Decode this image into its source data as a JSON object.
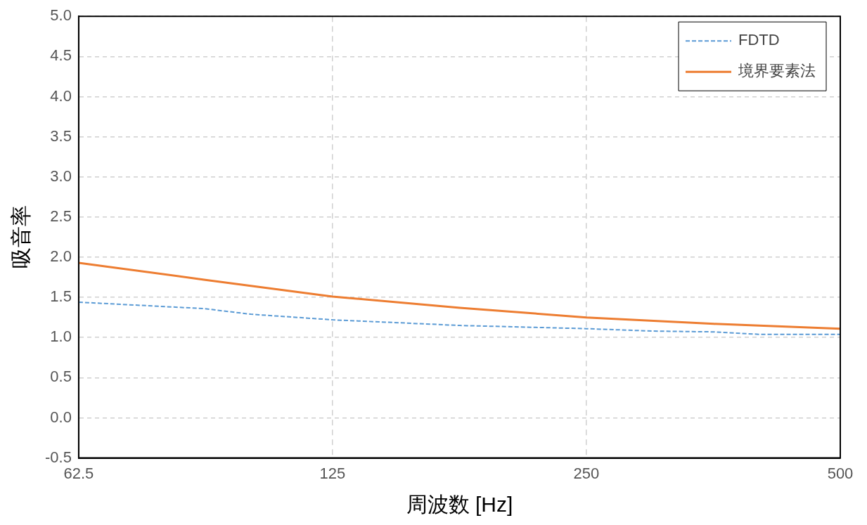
{
  "chart_data": {
    "type": "line",
    "xlabel": "周波数 [Hz]",
    "ylabel": "吸音率",
    "log": "x",
    "grid": true,
    "legend": "top right",
    "marker": "none",
    "xlim": [
      62.5,
      500
    ],
    "xticks": [
      62.5,
      125,
      250,
      500
    ],
    "ylim": [
      -0.5,
      5
    ],
    "yticks": [
      {
        "value": -0.5,
        "label": "-0.5"
      },
      {
        "value": 0,
        "label": "0.0"
      },
      {
        "value": 0.5,
        "label": "0.5"
      },
      {
        "value": 1,
        "label": "1.0"
      },
      {
        "value": 1.5,
        "label": "1.5"
      },
      {
        "value": 2,
        "label": "2.0"
      },
      {
        "value": 2.5,
        "label": "2.5"
      },
      {
        "value": 3,
        "label": "3.0"
      },
      {
        "value": 3.5,
        "label": "3.5"
      },
      {
        "value": 4,
        "label": "4.0"
      },
      {
        "value": 4.5,
        "label": "4.5"
      },
      {
        "value": 5,
        "label": "5.0"
      }
    ],
    "series": [
      {
        "name": "FDTD",
        "color": "#5b9bd5",
        "line_style": "dashed",
        "x": [
          62.5,
          88,
          100,
          125,
          177,
          250,
          300,
          354,
          400,
          500
        ],
        "values": [
          1.44,
          1.36,
          1.29,
          1.22,
          1.15,
          1.11,
          1.08,
          1.07,
          1.04,
          1.04
        ]
      },
      {
        "name": "境界要素法",
        "color": "#ed7d31",
        "line_style": "solid",
        "x": [
          62.5,
          88,
          125,
          177,
          250,
          354,
          500
        ],
        "values": [
          1.93,
          1.72,
          1.51,
          1.37,
          1.25,
          1.17,
          1.11
        ]
      }
    ]
  }
}
